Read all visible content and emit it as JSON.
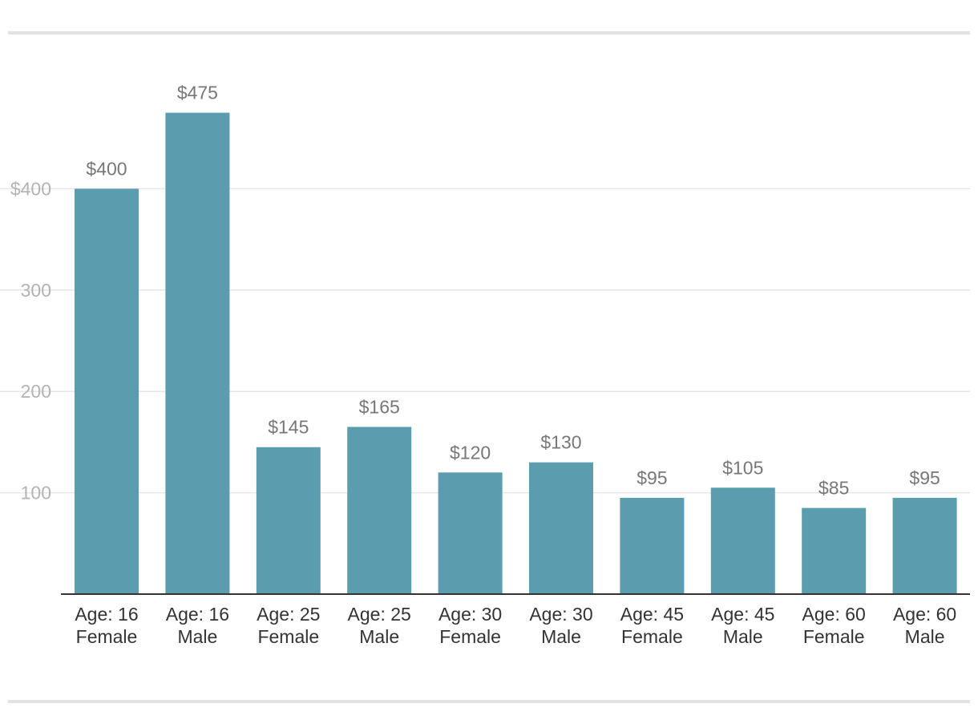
{
  "chart_data": {
    "type": "bar",
    "categories": [
      [
        "Age: 16",
        "Female"
      ],
      [
        "Age: 16",
        "Male"
      ],
      [
        "Age: 25",
        "Female"
      ],
      [
        "Age: 25",
        "Male"
      ],
      [
        "Age: 30",
        "Female"
      ],
      [
        "Age: 30",
        "Male"
      ],
      [
        "Age: 45",
        "Female"
      ],
      [
        "Age: 45",
        "Male"
      ],
      [
        "Age: 60",
        "Female"
      ],
      [
        "Age: 60",
        "Male"
      ]
    ],
    "values": [
      400,
      475,
      145,
      165,
      120,
      130,
      95,
      105,
      85,
      95
    ],
    "data_labels": [
      "$400",
      "$475",
      "$145",
      "$165",
      "$120",
      "$130",
      "$95",
      "$105",
      "$85",
      "$95"
    ],
    "yticks": [
      {
        "value": 100,
        "label": "100"
      },
      {
        "value": 200,
        "label": "200"
      },
      {
        "value": 300,
        "label": "300"
      },
      {
        "value": 400,
        "label": "$400"
      }
    ],
    "ylim": [
      0,
      475
    ],
    "grid": true,
    "bar_color": "#5b9dae",
    "title": "",
    "xlabel": "",
    "ylabel": ""
  }
}
